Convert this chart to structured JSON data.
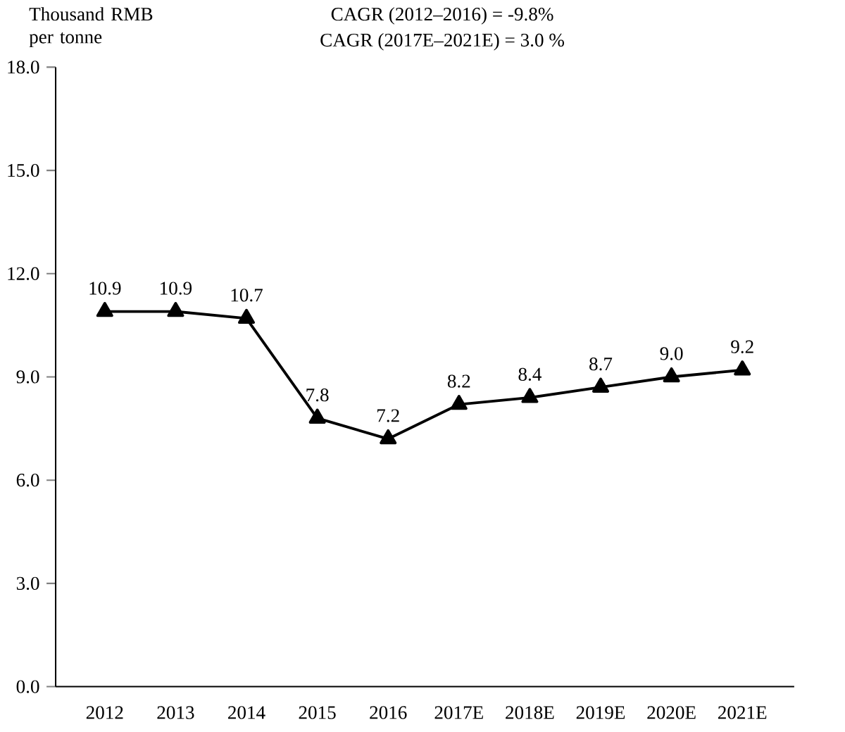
{
  "chart_data": {
    "type": "line",
    "ylabel": "Thousand RMB per tonne",
    "annotations": [
      "CAGR (2012–2016) = -9.8%",
      "CAGR (2017E–2021E) = 3.0 %"
    ],
    "categories": [
      "2012",
      "2013",
      "2014",
      "2015",
      "2016",
      "2017E",
      "2018E",
      "2019E",
      "2020E",
      "2021E"
    ],
    "values": [
      10.9,
      10.9,
      10.7,
      7.8,
      7.2,
      8.2,
      8.4,
      8.7,
      9.0,
      9.2
    ],
    "value_labels": [
      "10.9",
      "10.9",
      "10.7",
      "7.8",
      "7.2",
      "8.2",
      "8.4",
      "8.7",
      "9.0",
      "9.2"
    ],
    "color": "#000000",
    "marker": "triangle",
    "line_style": "solid",
    "ylim": [
      0,
      18
    ],
    "yticks": [
      {
        "value": 0,
        "label": "0.0"
      },
      {
        "value": 3,
        "label": "3.0"
      },
      {
        "value": 6,
        "label": "6.0"
      },
      {
        "value": 9,
        "label": "9.0"
      },
      {
        "value": 12,
        "label": "12.0"
      },
      {
        "value": 15,
        "label": "15.0"
      },
      {
        "value": 18,
        "label": "18.0"
      }
    ]
  }
}
